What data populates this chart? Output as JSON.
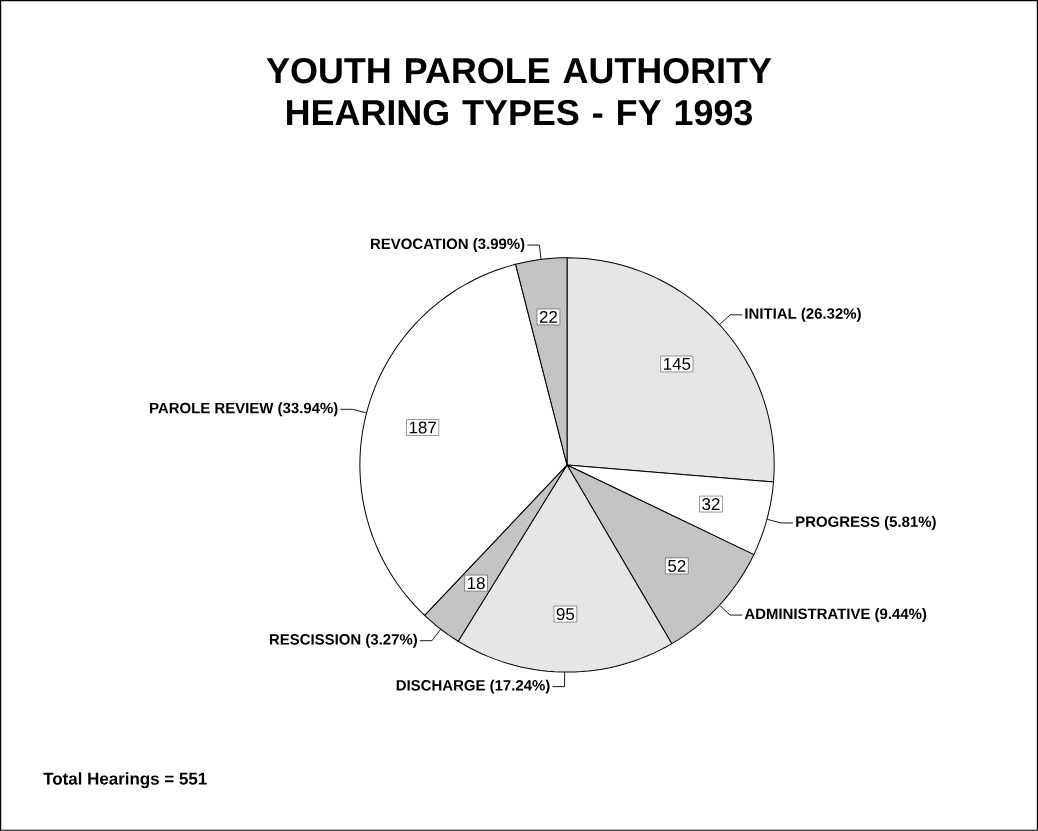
{
  "chart_data": {
    "type": "pie",
    "title": "YOUTH PAROLE AUTHORITY HEARING TYPES - FY 1993",
    "categories": [
      "INITIAL (26.32%)",
      "PROGRESS (5.81%)",
      "ADMINISTRATIVE (9.44%)",
      "DISCHARGE (17.24%)",
      "RESCISSION (3.27%)",
      "PAROLE REVIEW (33.94%)",
      "REVOCATION (3.99%)"
    ],
    "values": [
      145,
      32,
      52,
      95,
      18,
      187,
      22
    ],
    "colors": [
      "#e6e6e6",
      "#ffffff",
      "#c4c4c4",
      "#e6e6e6",
      "#c4c4c4",
      "#ffffff",
      "#c4c4c4"
    ],
    "data_labels": true,
    "annotations": [
      "Total Hearings = 551"
    ]
  }
}
